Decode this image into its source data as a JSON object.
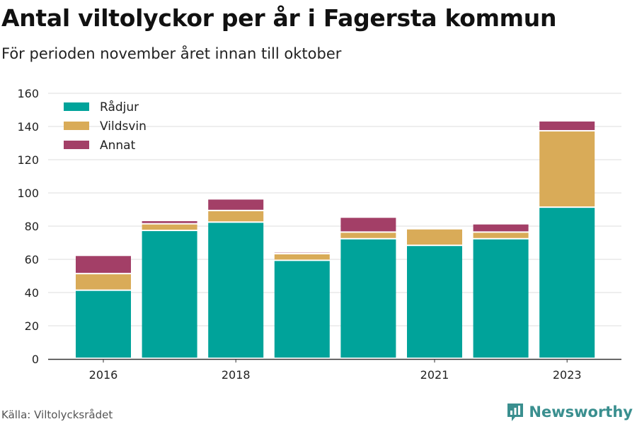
{
  "header": {
    "title": "Antal viltolyckor per år i Fagersta kommun",
    "subtitle": "För perioden november året innan till oktober"
  },
  "footer": {
    "source": "Källa: Viltolycksrådet",
    "brand": "Newsworthy",
    "brand_icon": "bar-chart-logo-icon"
  },
  "colors": {
    "radjur": "#00a39a",
    "vildsvin": "#d9ab58",
    "annat": "#a33f67",
    "grid": "#dddddd",
    "axis": "#333333",
    "brand": "#3a8f8f"
  },
  "chart_data": {
    "type": "bar",
    "stacked": true,
    "categories": [
      "2016",
      "2017",
      "2018",
      "2019",
      "2020",
      "2021",
      "2022",
      "2023"
    ],
    "x_tick_labels": [
      "2016",
      "",
      "2018",
      "",
      "",
      "2021",
      "",
      "2023"
    ],
    "series": [
      {
        "name": "Rådjur",
        "values": [
          41,
          77,
          82,
          59,
          72,
          68,
          72,
          91
        ]
      },
      {
        "name": "Vildsvin",
        "values": [
          10,
          4,
          7,
          4,
          4,
          10,
          4,
          46
        ]
      },
      {
        "name": "Annat",
        "values": [
          11,
          2,
          7,
          1,
          9,
          0,
          5,
          6
        ]
      }
    ],
    "ylim": [
      0,
      160
    ],
    "yticks": [
      0,
      20,
      40,
      60,
      80,
      100,
      120,
      140,
      160
    ],
    "grid": true,
    "legend_position": "top-left"
  }
}
